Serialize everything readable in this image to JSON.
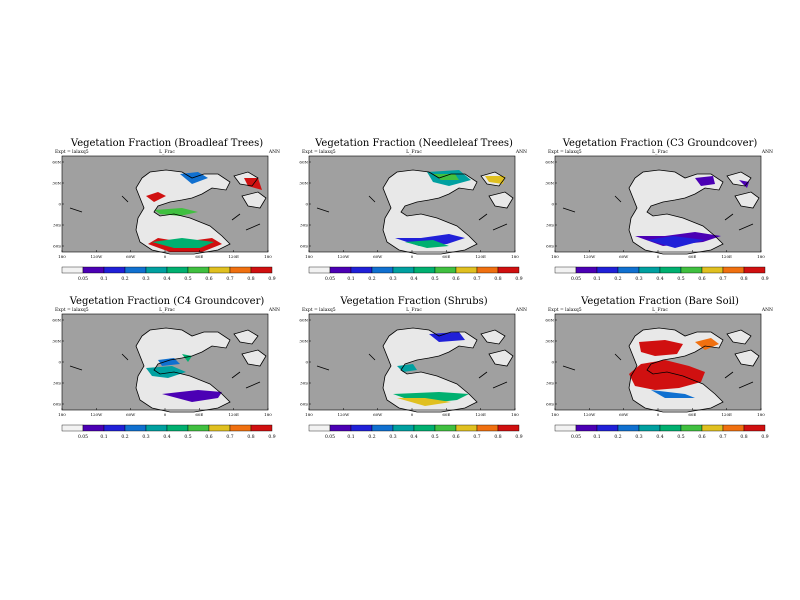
{
  "palette": [
    "#f2f2f2",
    "#4b00b4",
    "#2020d8",
    "#1070d0",
    "#00a0a0",
    "#00b070",
    "#40c040",
    "#e0c020",
    "#f07010",
    "#d01010"
  ],
  "colors": {
    "ocean": "#a0a0a0",
    "land": "#e8e8e8",
    "coast": "#000000"
  },
  "colorbar_labels": [
    "0.05",
    "0.1",
    "0.2",
    "0.3",
    "0.4",
    "0.5",
    "0.6",
    "0.7",
    "0.8",
    "0.9"
  ],
  "lon_ticks": [
    "180",
    "120W",
    "60W",
    "0",
    "60E",
    "120E",
    "180"
  ],
  "lat_ticks": [
    "60N",
    "30N",
    "0",
    "30S",
    "60S"
  ],
  "panels": [
    {
      "title": "Vegetation Fraction (Broadleaf Trees)",
      "case": "Expt = lalaxq5",
      "variable": "L_Frac",
      "season": "ANN"
    },
    {
      "title": "Vegetation Fraction (Needleleaf Trees)",
      "case": "Expt = lalaxq5",
      "variable": "L_Frac",
      "season": "ANN"
    },
    {
      "title": "Vegetation Fraction (C3 Groundcover)",
      "case": "Expt = lalaxq5",
      "variable": "L_Frac",
      "season": "ANN"
    },
    {
      "title": "Vegetation Fraction (C4 Groundcover)",
      "case": "Expt = lalaxq5",
      "variable": "L_Frac",
      "season": "ANN"
    },
    {
      "title": "Vegetation Fraction (Shrubs)",
      "case": "Expt = lalaxq5",
      "variable": "L_Frac",
      "season": "ANN"
    },
    {
      "title": "Vegetation Fraction (Bare Soil)",
      "case": "Expt = lalaxq5",
      "variable": "L_Frac",
      "season": "ANN"
    }
  ]
}
